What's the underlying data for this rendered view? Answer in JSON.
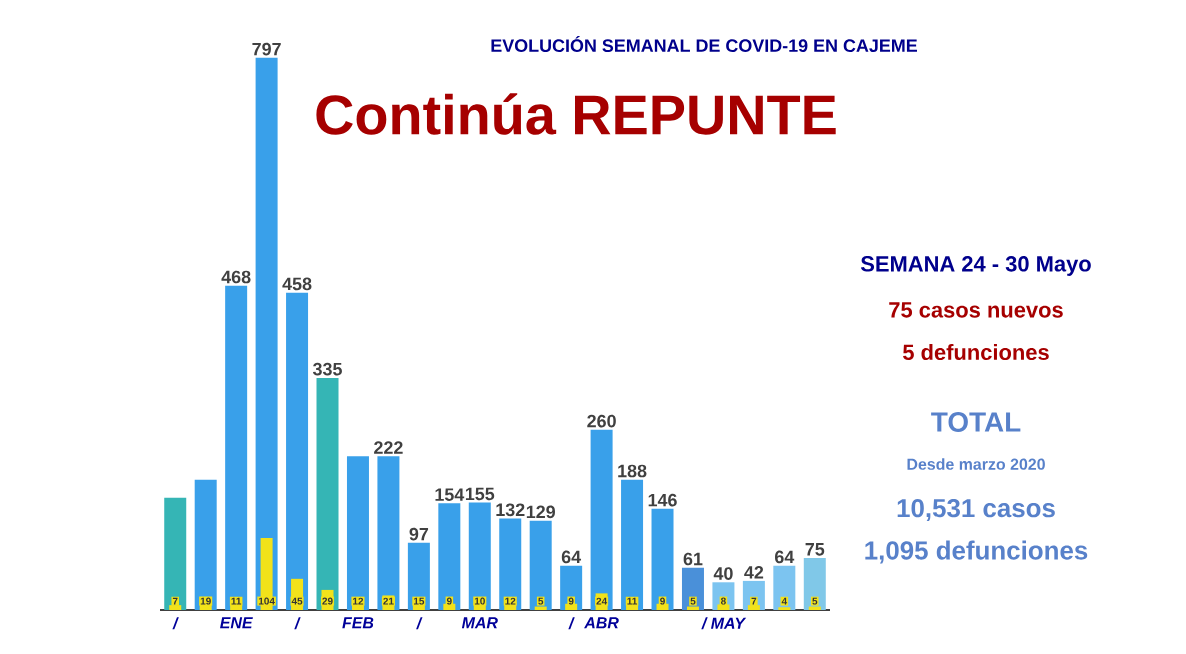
{
  "chart_data": {
    "type": "bar",
    "title": "Continúa REPUNTE",
    "subtitle": "EVOLUCIÓN SEMANAL DE COVID-19 EN CAJEME",
    "categories": [
      "/",
      null,
      "ENE",
      null,
      "/",
      null,
      "FEB",
      null,
      "/",
      null,
      "MAR",
      null,
      null,
      "/",
      "ABR",
      null,
      null,
      null,
      "/ MAY",
      null,
      null,
      null
    ],
    "series": [
      {
        "colors": [
          "#35b5b5",
          "#39a0ea",
          "#39a0ea",
          "#39a0ea",
          "#39a0ea",
          "#35b5b5",
          "#39a0ea",
          "#39a0ea",
          "#39a0ea",
          "#39a0ea",
          "#39a0ea",
          "#39a0ea",
          "#39a0ea",
          "#39a0ea",
          "#39a0ea",
          "#39a0ea",
          "#39a0ea",
          "#4a90d9",
          "#7cc4f0",
          "#7cc4f0",
          "#7cc4f0",
          "#80c8e8"
        ],
        "values": [
          162,
          188,
          468,
          797,
          458,
          335,
          222,
          222,
          97,
          154,
          155,
          132,
          129,
          64,
          260,
          188,
          146,
          61,
          40,
          42,
          64,
          75
        ],
        "value_labels": [
          null,
          null,
          "468",
          "797",
          "458",
          "335",
          null,
          "222",
          "97",
          "154",
          "155",
          "132",
          "129",
          "64",
          "260",
          "188",
          "146",
          "61",
          "40",
          "42",
          "64",
          "75"
        ]
      },
      {
        "color": "#f2e21a",
        "values": [
          7,
          19,
          11,
          104,
          45,
          29,
          12,
          21,
          15,
          9,
          10,
          12,
          5,
          9,
          24,
          11,
          9,
          5,
          8,
          7,
          4,
          5
        ],
        "value_labels": [
          "7",
          "19",
          "11",
          "104",
          "45",
          "29",
          "12",
          "21",
          "15",
          "9",
          "10",
          "12",
          "5",
          "9",
          "24",
          "11",
          "9",
          "5",
          "8",
          "7",
          "4",
          "5"
        ]
      }
    ],
    "annotations": [
      "SEMANA 24 - 30 Mayo",
      "75 casos nuevos",
      "5 defunciones",
      "TOTAL",
      "Desde marzo 2020",
      "10,531 casos",
      "1,095 defunciones"
    ]
  }
}
